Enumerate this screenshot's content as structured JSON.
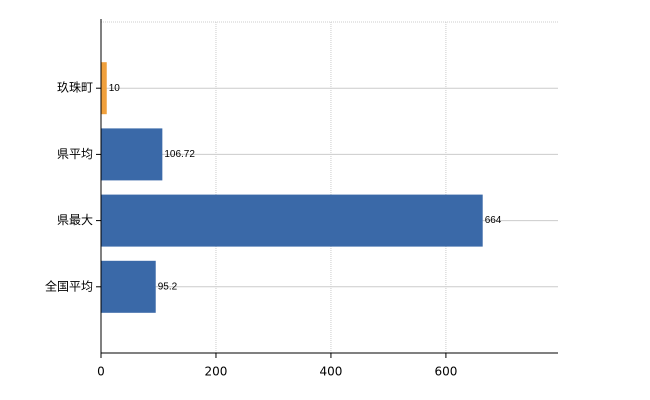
{
  "chart_data": {
    "type": "hbar",
    "categories": [
      "玖珠町",
      "県平均",
      "県最大",
      "全国平均"
    ],
    "values": [
      10,
      106.72,
      664,
      95.2
    ],
    "colors": [
      "#f0a03c",
      "#3a69a8",
      "#3a69a8",
      "#3a69a8"
    ],
    "xlim": [
      0,
      795
    ],
    "xticks": [
      0,
      200,
      400,
      600
    ],
    "grid": true
  }
}
